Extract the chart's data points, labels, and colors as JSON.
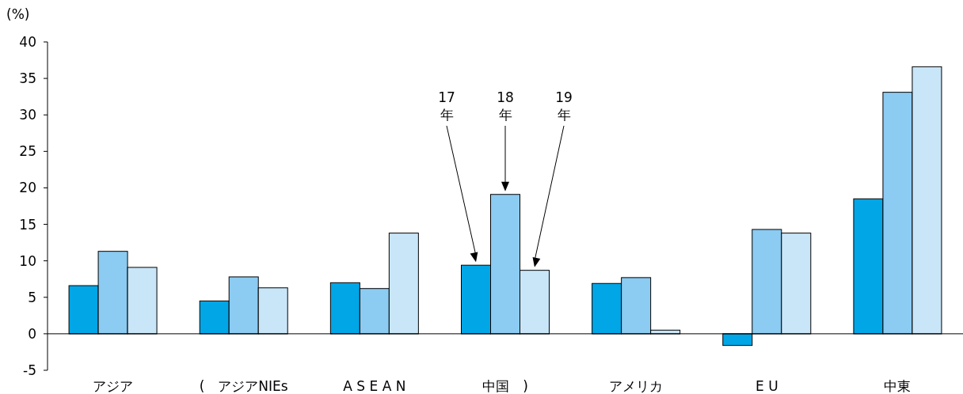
{
  "chart_data": {
    "type": "bar",
    "ylabel": "(%)",
    "categories": [
      "アジア",
      "(　アジアNIEs",
      "A S E A N",
      "中国　)",
      "アメリカ",
      "E U",
      "中東"
    ],
    "series": [
      {
        "color": "#00a6e6",
        "values": [
          6.6,
          4.5,
          7.0,
          9.4,
          6.9,
          -1.6,
          18.5
        ]
      },
      {
        "color": "#8ccbf2",
        "values": [
          11.3,
          7.8,
          6.2,
          19.1,
          7.7,
          14.3,
          33.1
        ]
      },
      {
        "color": "#c8e6f8",
        "values": [
          9.1,
          6.3,
          13.8,
          8.7,
          0.5,
          13.8,
          36.6
        ]
      }
    ],
    "ylim": [
      -5,
      40
    ],
    "yticks": [
      -5,
      0,
      5,
      10,
      15,
      20,
      25,
      30,
      35,
      40
    ],
    "annotations": [
      "17年",
      "18年",
      "19年"
    ]
  }
}
